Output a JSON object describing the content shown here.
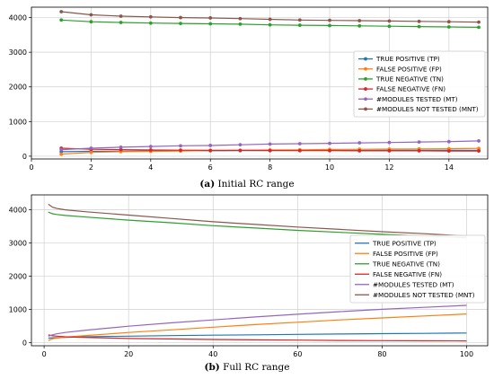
{
  "chart_data": [
    {
      "type": "line",
      "caption_tag": "(a)",
      "caption_text": "Initial RC range",
      "x": [
        1,
        2,
        3,
        4,
        5,
        6,
        7,
        8,
        9,
        10,
        11,
        12,
        13,
        14,
        15
      ],
      "xlim": [
        0,
        15.3
      ],
      "ylim": [
        -80,
        4300
      ],
      "xticks": [
        0,
        2,
        4,
        6,
        8,
        10,
        12,
        14
      ],
      "yticks": [
        0,
        1000,
        2000,
        3000,
        4000
      ],
      "grid": true,
      "markers": true,
      "legend_position": "center-right",
      "series": [
        {
          "name": "TRUE POSITIVE (TP)",
          "color": "#1f77b4",
          "values": [
            130,
            140,
            145,
            150,
            155,
            155,
            160,
            160,
            165,
            165,
            165,
            170,
            170,
            170,
            170
          ]
        },
        {
          "name": "FALSE POSITIVE (FP)",
          "color": "#ff7f0e",
          "values": [
            60,
            110,
            130,
            140,
            150,
            160,
            170,
            180,
            185,
            195,
            200,
            205,
            210,
            215,
            225
          ]
        },
        {
          "name": "TRUE NEGATIVE (TN)",
          "color": "#2ca02c",
          "values": [
            3930,
            3880,
            3860,
            3840,
            3830,
            3820,
            3810,
            3790,
            3780,
            3770,
            3760,
            3750,
            3740,
            3730,
            3720
          ]
        },
        {
          "name": "FALSE NEGATIVE (FN)",
          "color": "#d62728",
          "values": [
            230,
            200,
            190,
            180,
            175,
            170,
            170,
            165,
            160,
            160,
            155,
            155,
            155,
            150,
            150
          ]
        },
        {
          "name": "#MODULES TESTED (MT)",
          "color": "#9467bd",
          "values": [
            190,
            230,
            260,
            280,
            300,
            310,
            330,
            350,
            360,
            370,
            385,
            395,
            410,
            420,
            440
          ]
        },
        {
          "name": "#MODULES NOT TESTED (MNT)",
          "color": "#8c564b",
          "values": [
            4170,
            4080,
            4040,
            4020,
            4000,
            3990,
            3970,
            3950,
            3930,
            3920,
            3910,
            3900,
            3890,
            3880,
            3870
          ]
        }
      ]
    },
    {
      "type": "line",
      "caption_tag": "(b)",
      "caption_text": "Full RC range",
      "x": [
        1,
        2,
        3,
        5,
        10,
        20,
        30,
        40,
        50,
        60,
        70,
        80,
        90,
        100
      ],
      "xlim": [
        -3,
        105
      ],
      "ylim": [
        -100,
        4450
      ],
      "xticks": [
        0,
        20,
        40,
        60,
        80,
        100
      ],
      "yticks": [
        0,
        1000,
        2000,
        3000,
        4000
      ],
      "grid": true,
      "markers": false,
      "legend_position": "center-right",
      "series": [
        {
          "name": "TRUE POSITIVE (TP)",
          "color": "#1f77b4",
          "values": [
            130,
            140,
            145,
            155,
            170,
            190,
            205,
            220,
            230,
            245,
            255,
            265,
            275,
            285
          ]
        },
        {
          "name": "FALSE POSITIVE (FP)",
          "color": "#ff7f0e",
          "values": [
            60,
            110,
            130,
            160,
            210,
            300,
            380,
            460,
            540,
            610,
            680,
            740,
            800,
            860
          ]
        },
        {
          "name": "TRUE NEGATIVE (TN)",
          "color": "#2ca02c",
          "values": [
            3930,
            3880,
            3860,
            3830,
            3780,
            3690,
            3610,
            3520,
            3450,
            3380,
            3320,
            3260,
            3210,
            3160
          ]
        },
        {
          "name": "FALSE NEGATIVE (FN)",
          "color": "#d62728",
          "values": [
            230,
            200,
            190,
            170,
            150,
            120,
            105,
            90,
            80,
            70,
            60,
            55,
            50,
            45
          ]
        },
        {
          "name": "#MODULES TESTED (MT)",
          "color": "#9467bd",
          "values": [
            190,
            230,
            260,
            300,
            370,
            490,
            590,
            680,
            770,
            850,
            930,
            1000,
            1060,
            1120
          ]
        },
        {
          "name": "#MODULES NOT TESTED (MNT)",
          "color": "#8c564b",
          "values": [
            4170,
            4080,
            4040,
            4000,
            3940,
            3840,
            3740,
            3640,
            3560,
            3480,
            3410,
            3340,
            3280,
            3210
          ]
        }
      ]
    }
  ]
}
